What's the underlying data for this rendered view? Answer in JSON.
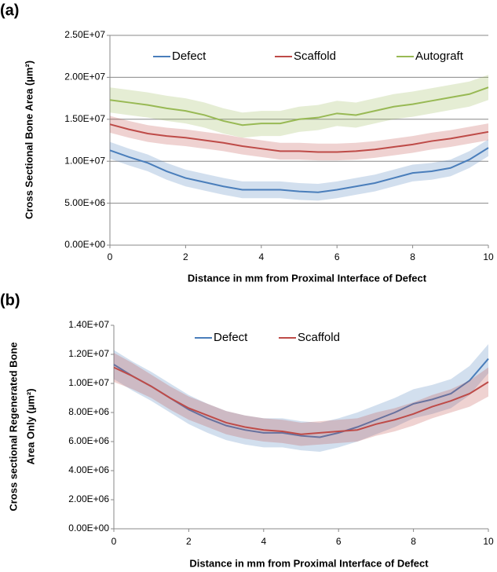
{
  "chart_data": [
    {
      "type": "line",
      "panel_label": "(a)",
      "x_label": "Distance in mm from Proximal Interface of Defect",
      "y_label": [
        "Cross Sectional Bone Area (µm²)"
      ],
      "x": [
        0,
        0.5,
        1,
        1.5,
        2,
        2.5,
        3,
        3.5,
        4,
        4.5,
        5,
        5.5,
        6,
        6.5,
        7,
        7.5,
        8,
        8.5,
        9,
        9.5,
        10
      ],
      "xlim": [
        0,
        10
      ],
      "xticks": [
        0,
        2,
        4,
        6,
        8,
        10
      ],
      "ylim": [
        0,
        25000000
      ],
      "yticks": [
        {
          "value": 0,
          "label": "0.00E+00"
        },
        {
          "value": 5000000,
          "label": "5.00E+06"
        },
        {
          "value": 10000000,
          "label": "1.00E+07"
        },
        {
          "value": 15000000,
          "label": "1.50E+07"
        },
        {
          "value": 20000000,
          "label": "2.00E+07"
        },
        {
          "value": 25000000,
          "label": "2.50E+07"
        }
      ],
      "grid": true,
      "legend": "top",
      "series": [
        {
          "name": "Defect",
          "color": "#4a7ebb",
          "values": [
            11300000,
            10500000,
            9800000,
            8800000,
            8000000,
            7500000,
            7000000,
            6600000,
            6600000,
            6600000,
            6400000,
            6300000,
            6600000,
            7000000,
            7400000,
            8000000,
            8600000,
            8800000,
            9200000,
            10200000,
            11600000
          ],
          "errors": [
            1000000,
            1000000,
            1000000,
            1000000,
            1000000,
            1000000,
            1000000,
            1000000,
            1000000,
            1000000,
            1000000,
            1000000,
            1000000,
            1000000,
            1000000,
            1000000,
            1000000,
            1000000,
            1000000,
            1000000,
            1000000
          ]
        },
        {
          "name": "Scaffold",
          "color": "#be4b48",
          "values": [
            14400000,
            13800000,
            13300000,
            13000000,
            12800000,
            12500000,
            12200000,
            11800000,
            11500000,
            11200000,
            11200000,
            11100000,
            11100000,
            11200000,
            11400000,
            11700000,
            12000000,
            12400000,
            12700000,
            13100000,
            13500000
          ],
          "errors": [
            1000000,
            1000000,
            1000000,
            1000000,
            1000000,
            1000000,
            1000000,
            1000000,
            1000000,
            1000000,
            1000000,
            1000000,
            1000000,
            1000000,
            1000000,
            1000000,
            1000000,
            1000000,
            1000000,
            1000000,
            1000000
          ]
        },
        {
          "name": "Autograft",
          "color": "#98b954",
          "values": [
            17300000,
            17000000,
            16700000,
            16300000,
            16000000,
            15500000,
            14800000,
            14300000,
            14500000,
            14500000,
            15000000,
            15200000,
            15700000,
            15500000,
            16000000,
            16500000,
            16800000,
            17200000,
            17600000,
            18000000,
            18800000
          ],
          "errors": [
            1500000,
            1500000,
            1500000,
            1500000,
            1500000,
            1500000,
            1500000,
            1500000,
            1500000,
            1500000,
            1500000,
            1500000,
            1500000,
            1500000,
            1500000,
            1500000,
            1500000,
            1500000,
            1500000,
            1500000,
            1500000
          ]
        }
      ]
    },
    {
      "type": "line",
      "panel_label": "(b)",
      "x_label": "Distance in mm from Proximal Interface of Defect",
      "y_label": [
        "Cross sectional Regenerated Bone",
        "Area Only (µm²)"
      ],
      "x": [
        0,
        0.5,
        1,
        1.5,
        2,
        2.5,
        3,
        3.5,
        4,
        4.5,
        5,
        5.5,
        6,
        6.5,
        7,
        7.5,
        8,
        8.5,
        9,
        9.5,
        10
      ],
      "xlim": [
        0,
        10
      ],
      "xticks": [
        0,
        2,
        4,
        6,
        8,
        10
      ],
      "ylim": [
        0,
        14000000
      ],
      "yticks": [
        {
          "value": 0,
          "label": "0.00E+00"
        },
        {
          "value": 2000000,
          "label": "2.00E+06"
        },
        {
          "value": 4000000,
          "label": "4.00E+06"
        },
        {
          "value": 6000000,
          "label": "6.00E+06"
        },
        {
          "value": 8000000,
          "label": "8.00E+06"
        },
        {
          "value": 10000000,
          "label": "1.00E+07"
        },
        {
          "value": 12000000,
          "label": "1.20E+07"
        },
        {
          "value": 14000000,
          "label": "1.40E+07"
        }
      ],
      "grid": false,
      "legend": "top",
      "series": [
        {
          "name": "Defect",
          "color": "#4a7ebb",
          "values": [
            11300000,
            10500000,
            9800000,
            9000000,
            8200000,
            7600000,
            7100000,
            6800000,
            6600000,
            6600000,
            6400000,
            6300000,
            6600000,
            7000000,
            7500000,
            8000000,
            8600000,
            8900000,
            9300000,
            10200000,
            11700000
          ],
          "errors": [
            1000000,
            1000000,
            1000000,
            1000000,
            1000000,
            1000000,
            1000000,
            1000000,
            1000000,
            1000000,
            1000000,
            1000000,
            1000000,
            1000000,
            1000000,
            1000000,
            1000000,
            1000000,
            1000000,
            1000000,
            1000000
          ]
        },
        {
          "name": "Scaffold",
          "color": "#be4b48",
          "values": [
            11100000,
            10500000,
            9800000,
            9000000,
            8300000,
            7800000,
            7300000,
            7000000,
            6800000,
            6700000,
            6500000,
            6600000,
            6700000,
            6800000,
            7200000,
            7500000,
            7900000,
            8400000,
            8800000,
            9300000,
            10100000
          ],
          "errors": [
            1000000,
            900000,
            800000,
            800000,
            800000,
            800000,
            800000,
            800000,
            800000,
            800000,
            800000,
            800000,
            800000,
            800000,
            800000,
            800000,
            800000,
            800000,
            800000,
            900000,
            1000000
          ]
        }
      ]
    }
  ]
}
